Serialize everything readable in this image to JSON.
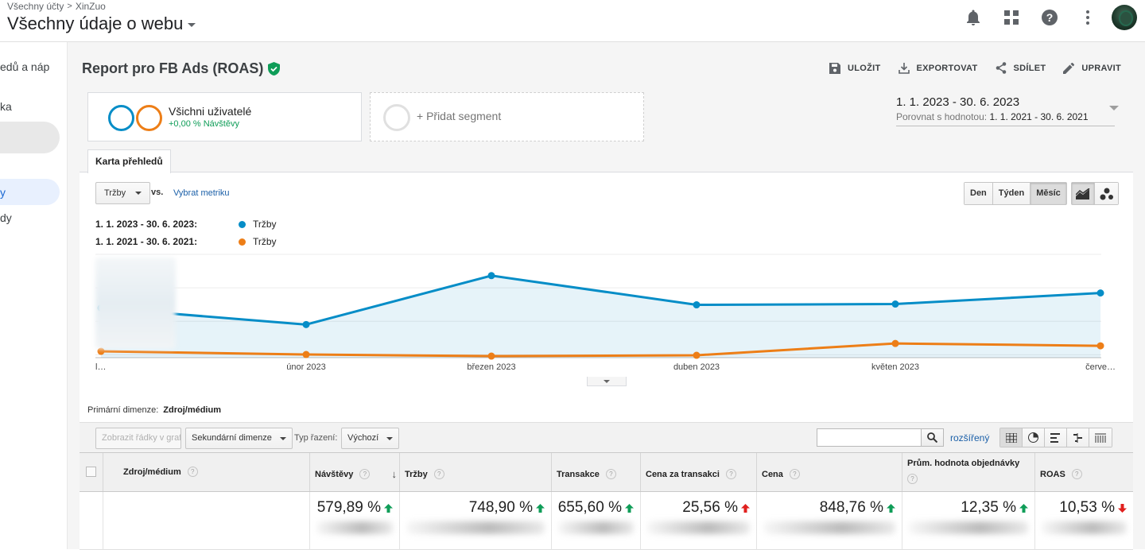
{
  "header": {
    "breadcrumb_root": "Všechny účty",
    "breadcrumb_sep": ">",
    "breadcrumb_account": "XinZuo",
    "property_name": "Všechny údaje o webu"
  },
  "sidebar": {
    "items": [
      {
        "label": "edů a náp"
      },
      {
        "label": "ka"
      },
      {
        "label": ""
      },
      {
        "label": "y"
      },
      {
        "label": "dy"
      }
    ]
  },
  "report": {
    "title": "Report pro FB Ads (ROAS)",
    "actions": {
      "save": "ULOŽIT",
      "export": "EXPORTOVAT",
      "share": "SDÍLET",
      "edit": "UPRAVIT"
    }
  },
  "segments": {
    "active_name": "Všichni uživatelé",
    "active_sub": "+0,00 % Návštěvy",
    "add_label": "+ Přidat segment"
  },
  "date_range": {
    "current": "1. 1. 2023 - 30. 6. 2023",
    "compare_label": "Porovnat s hodnotou:",
    "compare": "1. 1. 2021 - 30. 6. 2021"
  },
  "tab": {
    "label": "Karta přehledů"
  },
  "chart_controls": {
    "metric": "Tržby",
    "vs": "vs.",
    "pick_metric": "Vybrat metriku",
    "period_day": "Den",
    "period_week": "Týden",
    "period_month": "Měsíc"
  },
  "chart_legend": [
    {
      "range": "1. 1. 2023 - 30. 6. 2023:",
      "metric": "Tržby",
      "color": "#058dc7"
    },
    {
      "range": "1. 1. 2021 - 30. 6. 2021:",
      "metric": "Tržby",
      "color": "#ed7e17"
    }
  ],
  "chart_data": {
    "type": "line",
    "categories": [
      "l…",
      "únor 2023",
      "březen 2023",
      "duben 2023",
      "květen 2023",
      "červe…"
    ],
    "series": [
      {
        "name": "Tržby",
        "values": [
          62,
          41,
          103,
          66,
          67,
          81
        ],
        "color": "#058dc7"
      },
      {
        "name": "Tržby",
        "values": [
          7,
          3,
          1,
          2,
          17,
          14
        ],
        "color": "#ed7e17"
      }
    ],
    "ylim": [
      0,
      130
    ],
    "grid": true,
    "area_fill_first_series": true
  },
  "table_controls": {
    "primary_dim_label": "Primární dimenze:",
    "primary_dim_value": "Zdroj/médium",
    "show_rows": "Zobrazit řádky v grafu",
    "secondary_dim": "Sekundární dimenze",
    "sort_label": "Typ řazení:",
    "sort_value": "Výchozí",
    "advanced": "rozšířený"
  },
  "table": {
    "columns": [
      "Zdroj/médium",
      "Návštěvy",
      "Tržby",
      "Transakce",
      "Cena za transakci",
      "Cena",
      "Prům. hodnota objednávky",
      "ROAS"
    ],
    "totals": [
      {
        "value": "579,89 %",
        "trend": "up"
      },
      {
        "value": "748,90 %",
        "trend": "up"
      },
      {
        "value": "655,60 %",
        "trend": "up"
      },
      {
        "value": "25,56 %",
        "trend": "up-red"
      },
      {
        "value": "848,76 %",
        "trend": "up"
      },
      {
        "value": "12,35 %",
        "trend": "up"
      },
      {
        "value": "10,53 %",
        "trend": "down-red"
      }
    ]
  },
  "colors": {
    "blue": "#058dc7",
    "orange": "#ed7e17",
    "green": "#0f9d58",
    "red": "#e0201e",
    "link": "#1a5fa8"
  }
}
